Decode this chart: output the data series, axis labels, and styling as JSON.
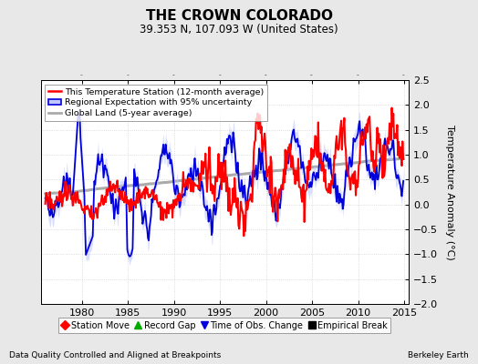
{
  "title": "THE CROWN COLORADO",
  "subtitle": "39.353 N, 107.093 W (United States)",
  "ylabel": "Temperature Anomaly (°C)",
  "xlabel_left": "Data Quality Controlled and Aligned at Breakpoints",
  "xlabel_right": "Berkeley Earth",
  "ylim": [
    -2.0,
    2.5
  ],
  "xlim": [
    1975.5,
    2015.5
  ],
  "xticks": [
    1980,
    1985,
    1990,
    1995,
    2000,
    2005,
    2010,
    2015
  ],
  "yticks": [
    -2.0,
    -1.5,
    -1.0,
    -0.5,
    0.0,
    0.5,
    1.0,
    1.5,
    2.0,
    2.5
  ],
  "bg_color": "#e8e8e8",
  "plot_bg_color": "#ffffff",
  "station_color": "#ff0000",
  "regional_color": "#0000dd",
  "regional_fill_color": "#c0c8ff",
  "global_color": "#aaaaaa",
  "title_fontsize": 11,
  "subtitle_fontsize": 8.5,
  "legend1_items": [
    {
      "label": "This Temperature Station (12-month average)",
      "color": "#ff0000",
      "lw": 1.8
    },
    {
      "label": "Regional Expectation with 95% uncertainty",
      "color": "#0000dd",
      "lw": 1.5
    },
    {
      "label": "Global Land (5-year average)",
      "color": "#aaaaaa",
      "lw": 2.0
    }
  ],
  "legend2_items": [
    {
      "label": "Station Move",
      "marker": "D",
      "color": "#ff0000"
    },
    {
      "label": "Record Gap",
      "marker": "^",
      "color": "#00aa00"
    },
    {
      "label": "Time of Obs. Change",
      "marker": "v",
      "color": "#0000dd"
    },
    {
      "label": "Empirical Break",
      "marker": "s",
      "color": "#000000"
    }
  ]
}
